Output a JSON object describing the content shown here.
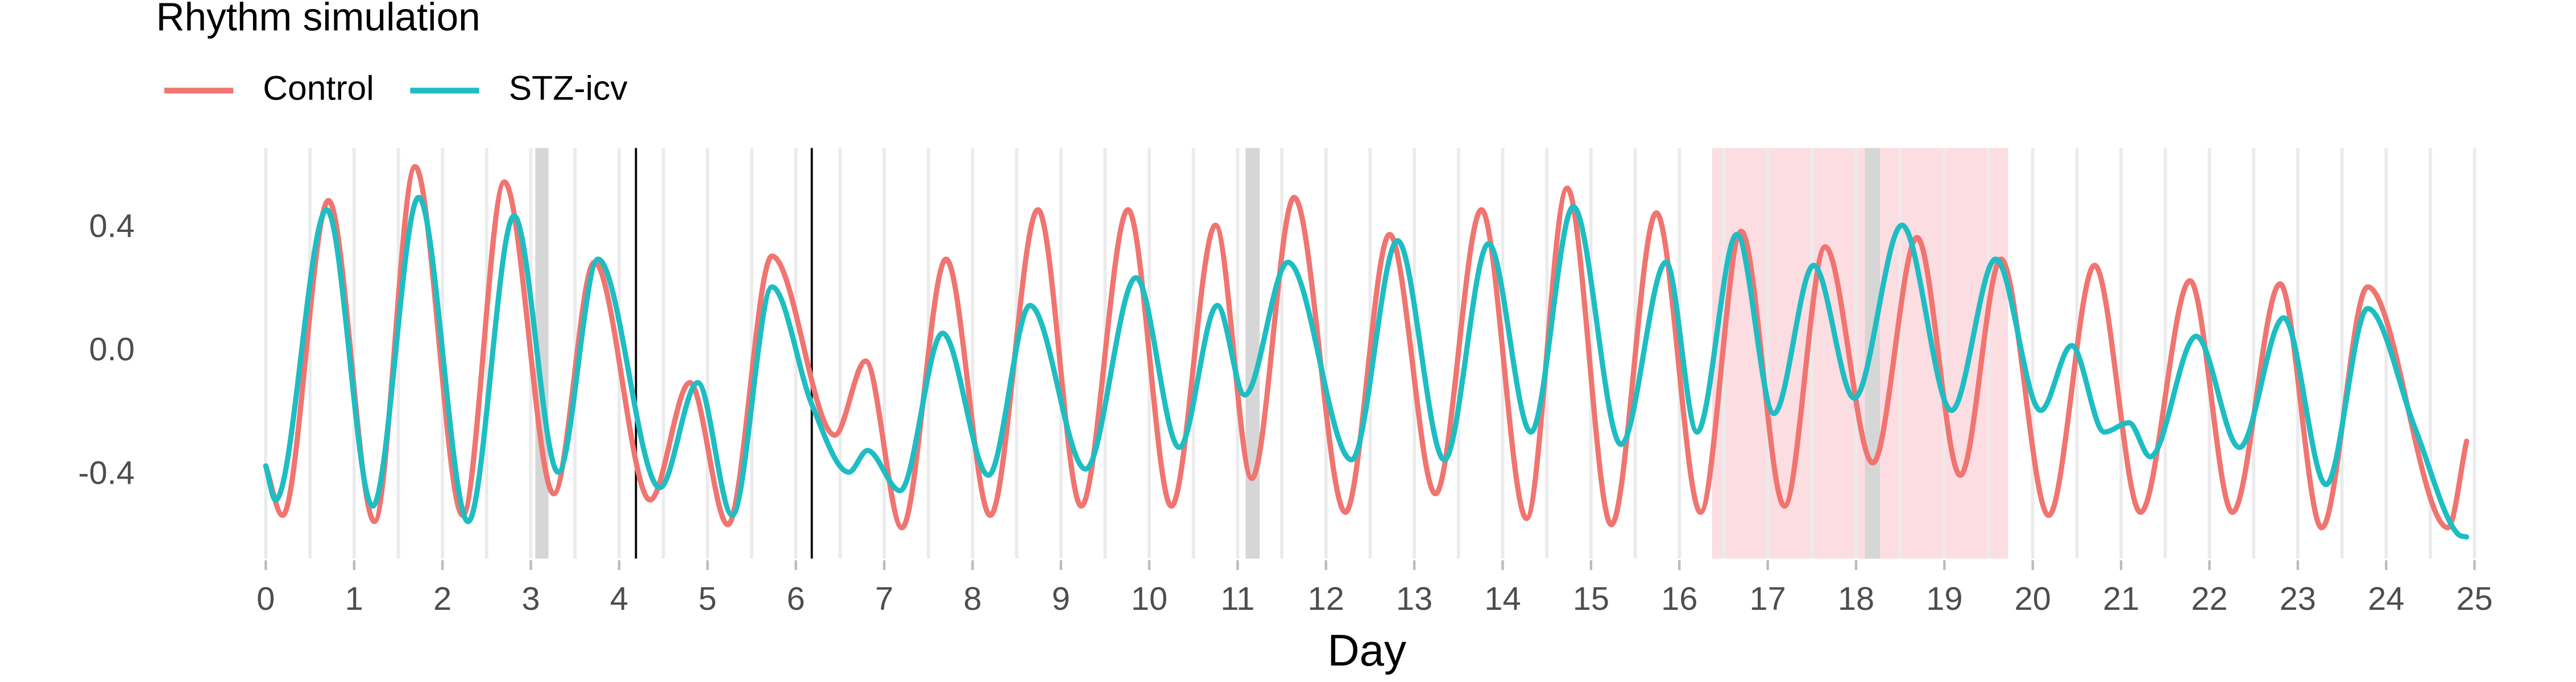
{
  "chart_data": {
    "type": "line",
    "legend_title": "Rhythm simulation",
    "x_label": "Day",
    "xlim": [
      -1,
      26
    ],
    "ylim": [
      -0.67,
      0.66
    ],
    "xticks": [
      0,
      1,
      2,
      3,
      4,
      5,
      6,
      7,
      8,
      9,
      10,
      11,
      12,
      13,
      14,
      15,
      16,
      17,
      18,
      19,
      20,
      21,
      22,
      23,
      24,
      25
    ],
    "yticks": [
      -0.4,
      {
        "value": 0,
        "label": "0.0"
      },
      0.4
    ],
    "grid": true,
    "legend_position": "top",
    "highlight_region": {
      "range": [
        16.37,
        19.72
      ],
      "color": "#fbdde2"
    },
    "gray_bands": {
      "ranges": [
        [
          3.05,
          3.2
        ],
        [
          11.09,
          11.25
        ],
        [
          18.1,
          18.27
        ]
      ],
      "color": "#d6d6d6"
    },
    "vertical_lines": {
      "x": [
        4.19,
        6.18
      ],
      "color": "#000000"
    },
    "series": [
      {
        "name": "Control",
        "color": "#f07470",
        "x": [
          0,
          0.19,
          0.71,
          1.23,
          1.69,
          2.23,
          2.7,
          3.26,
          3.72,
          4.35,
          4.8,
          5.23,
          5.73,
          6.44,
          6.79,
          7.2,
          7.7,
          8.2,
          8.74,
          9.23,
          9.76,
          10.25,
          10.75,
          11.16,
          11.64,
          12.22,
          12.72,
          13.24,
          13.76,
          14.27,
          14.73,
          15.23,
          15.74,
          16.24,
          16.7,
          17.19,
          17.65,
          18.19,
          18.69,
          19.18,
          19.64,
          20.18,
          20.7,
          21.22,
          21.78,
          22.26,
          22.8,
          23.27,
          23.79,
          24.7,
          24.91
        ],
        "values": [
          -0.37,
          -0.53,
          0.49,
          -0.55,
          0.6,
          -0.53,
          0.55,
          -0.46,
          0.29,
          -0.48,
          -0.1,
          -0.56,
          0.31,
          -0.27,
          -0.03,
          -0.57,
          0.3,
          -0.53,
          0.46,
          -0.5,
          0.46,
          -0.5,
          0.41,
          -0.41,
          0.5,
          -0.52,
          0.38,
          -0.46,
          0.46,
          -0.54,
          0.53,
          -0.56,
          0.45,
          -0.52,
          0.39,
          -0.5,
          0.34,
          -0.36,
          0.37,
          -0.4,
          0.3,
          -0.53,
          0.28,
          -0.52,
          0.23,
          -0.52,
          0.22,
          -0.57,
          0.21,
          -0.57,
          -0.29
        ]
      },
      {
        "name": "STZ-icv",
        "color": "#1ebdc2",
        "x": [
          0,
          0.11,
          0.69,
          1.21,
          1.73,
          2.29,
          2.81,
          3.31,
          3.76,
          4.46,
          4.89,
          5.28,
          5.73,
          6.18,
          6.6,
          6.81,
          7.18,
          7.66,
          8.18,
          8.65,
          9.28,
          9.85,
          10.34,
          10.77,
          11.08,
          11.57,
          12.29,
          12.81,
          13.34,
          13.84,
          14.32,
          14.8,
          15.34,
          15.85,
          16.2,
          16.65,
          17.07,
          17.52,
          17.98,
          18.52,
          19.08,
          19.58,
          20.09,
          20.44,
          20.81,
          21.09,
          21.33,
          21.85,
          22.34,
          22.84,
          23.32,
          23.79,
          24.33,
          24.81,
          24.91
        ],
        "values": [
          -0.37,
          -0.48,
          0.46,
          -0.5,
          0.5,
          -0.55,
          0.44,
          -0.39,
          0.3,
          -0.44,
          -0.1,
          -0.53,
          0.21,
          -0.17,
          -0.39,
          -0.32,
          -0.45,
          0.06,
          -0.4,
          0.15,
          -0.38,
          0.24,
          -0.31,
          0.15,
          -0.14,
          0.29,
          -0.35,
          0.36,
          -0.35,
          0.35,
          -0.26,
          0.47,
          -0.3,
          0.29,
          -0.26,
          0.38,
          -0.2,
          0.28,
          -0.15,
          0.41,
          -0.19,
          0.3,
          -0.19,
          0.02,
          -0.26,
          -0.23,
          -0.34,
          0.05,
          -0.31,
          0.11,
          -0.43,
          0.14,
          -0.25,
          -0.59,
          -0.6
        ]
      }
    ]
  }
}
